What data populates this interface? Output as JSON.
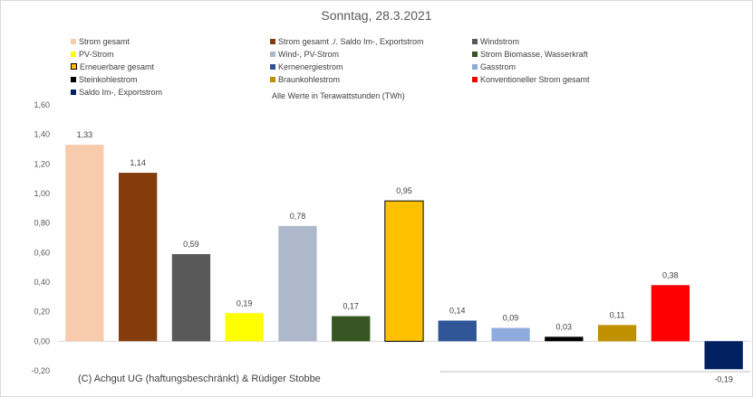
{
  "chart_data": {
    "type": "bar",
    "title": "Sonntag, 28.3.2021",
    "note": "Alle Werte in Terawattstunden (TWh)",
    "copyright": "(C) Achgut UG (haftungsbeschränkt) & Rüdiger Stobbe",
    "ylim": [
      -0.2,
      1.6
    ],
    "yticks": [
      1.6,
      1.4,
      1.2,
      1.0,
      0.8,
      0.6,
      0.4,
      0.2,
      0.0,
      -0.2
    ],
    "ytick_labels": [
      "1,60",
      "1,40",
      "1,20",
      "1,00",
      "0,80",
      "0,60",
      "0,40",
      "0,20",
      "0,00",
      "-0,20"
    ],
    "series": [
      {
        "name": "Strom gesamt",
        "value": 1.33,
        "label": "1,33",
        "color": "#f8cbad",
        "outlined": false
      },
      {
        "name": "Strom gesamt ./. Saldo Im-, Exportstrom",
        "value": 1.14,
        "label": "1,14",
        "color": "#843c0c",
        "outlined": false
      },
      {
        "name": "Windstrom",
        "value": 0.59,
        "label": "0,59",
        "color": "#595959",
        "outlined": false
      },
      {
        "name": "PV-Strom",
        "value": 0.19,
        "label": "0,19",
        "color": "#ffff00",
        "outlined": false
      },
      {
        "name": "Wind-, PV-Strom",
        "value": 0.78,
        "label": "0,78",
        "color": "#adb9ca",
        "outlined": false
      },
      {
        "name": "Strom Biomasse, Wasserkraft",
        "value": 0.17,
        "label": "0,17",
        "color": "#375623",
        "outlined": false
      },
      {
        "name": "Erneuerbare gesamt",
        "value": 0.95,
        "label": "0,95",
        "color": "#ffc000",
        "outlined": true
      },
      {
        "name": "Kernenergiestrom",
        "value": 0.14,
        "label": "0,14",
        "color": "#2f5597",
        "outlined": false
      },
      {
        "name": "Gasstrom",
        "value": 0.09,
        "label": "0,09",
        "color": "#8faadc",
        "outlined": false
      },
      {
        "name": "Steinkohlestrom",
        "value": 0.03,
        "label": "0,03",
        "color": "#000000",
        "outlined": false
      },
      {
        "name": "Braunkohlestrom",
        "value": 0.11,
        "label": "0,11",
        "color": "#bf9000",
        "outlined": false
      },
      {
        "name": "Konventioneller Strom gesamt",
        "value": 0.38,
        "label": "0,38",
        "color": "#ff0000",
        "outlined": false
      },
      {
        "name": "Saldo Im-, Exportstrom",
        "value": -0.19,
        "label": "-0,19",
        "color": "#002060",
        "outlined": false
      }
    ]
  }
}
